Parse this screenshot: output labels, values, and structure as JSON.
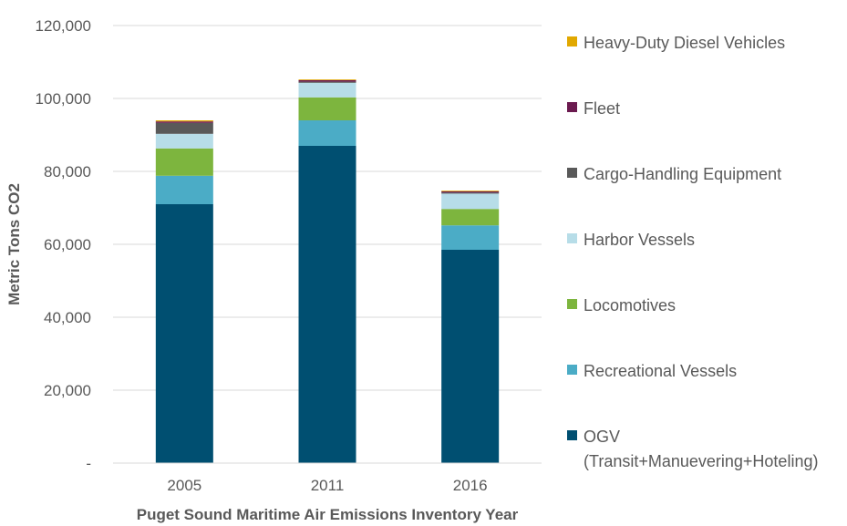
{
  "chart_data": {
    "type": "bar",
    "stacked": true,
    "categories": [
      "2005",
      "2011",
      "2016"
    ],
    "series": [
      {
        "name": "OGV (Transit+Manuevering+Hoteling)",
        "label_lines": [
          "OGV",
          "(Transit+Manuevering+Hoteling)"
        ],
        "color": "#004f71",
        "values": [
          71000,
          87000,
          58500
        ]
      },
      {
        "name": "Recreational Vessels",
        "label_lines": [
          "Recreational Vessels"
        ],
        "color": "#4bacc6",
        "values": [
          7800,
          7000,
          6700
        ]
      },
      {
        "name": "Locomotives",
        "label_lines": [
          "Locomotives"
        ],
        "color": "#7db53e",
        "values": [
          7500,
          6300,
          4500
        ]
      },
      {
        "name": "Harbor Vessels",
        "label_lines": [
          "Harbor Vessels"
        ],
        "color": "#b7dde8",
        "values": [
          4000,
          4000,
          4200
        ]
      },
      {
        "name": "Cargo-Handling Equipment",
        "label_lines": [
          "Cargo-Handling Equipment"
        ],
        "color": "#595959",
        "values": [
          3000,
          300,
          300
        ]
      },
      {
        "name": "Fleet",
        "label_lines": [
          "Fleet"
        ],
        "color": "#6b1a4f",
        "values": [
          400,
          400,
          300
        ]
      },
      {
        "name": "Heavy-Duty Diesel Vehicles",
        "label_lines": [
          "Heavy-Duty Diesel Vehicles"
        ],
        "color": "#e1a800",
        "values": [
          300,
          200,
          200
        ]
      }
    ],
    "ylim": [
      0,
      120000
    ],
    "yticks": [
      0,
      20000,
      40000,
      60000,
      80000,
      100000,
      120000
    ],
    "ytick_labels": [
      "-",
      "20,000",
      "40,000",
      "60,000",
      "80,000",
      "100,000",
      "120,000"
    ],
    "xlabel": "Puget Sound Maritime Air Emissions Inventory Year",
    "ylabel": "Metric Tons CO2",
    "grid": true,
    "legend": "right"
  }
}
